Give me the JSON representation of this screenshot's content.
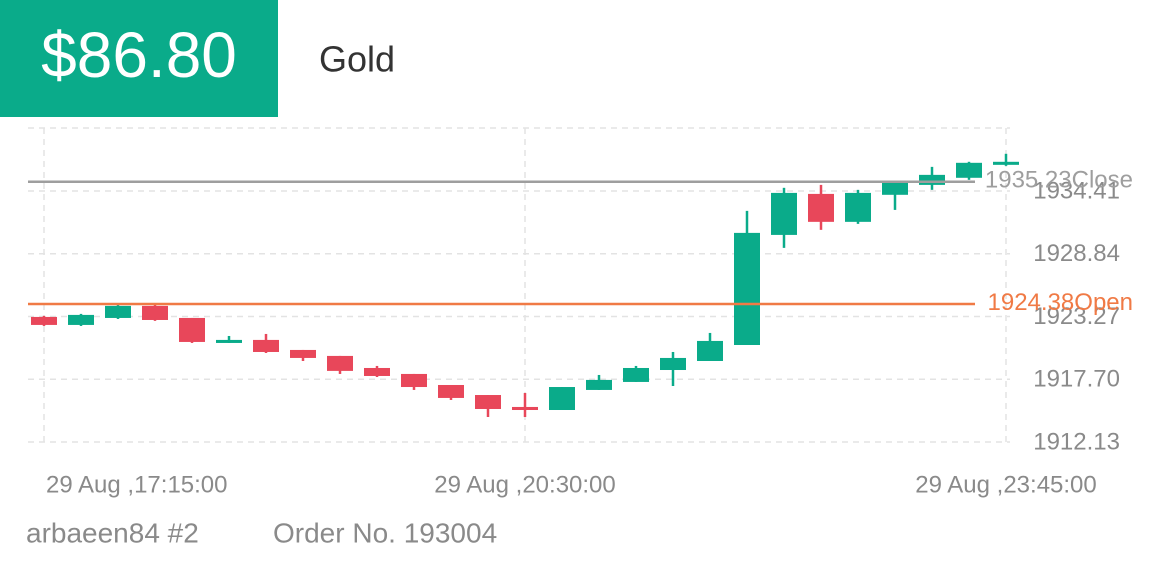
{
  "header": {
    "price": "$86.80",
    "title": "Gold"
  },
  "footer": {
    "user": "arbaeen84 #2",
    "order": "Order No. 193004"
  },
  "chart_data": {
    "type": "candlestick",
    "categories": [
      "29 Aug ,17:15:00",
      null,
      null,
      null,
      null,
      null,
      null,
      null,
      null,
      null,
      null,
      null,
      null,
      "29 Aug ,20:30:00",
      null,
      null,
      null,
      null,
      null,
      null,
      null,
      null,
      null,
      null,
      null,
      null,
      "29 Aug ,23:45:00"
    ],
    "open": [
      1923.23,
      1922.52,
      1923.14,
      1924.21,
      1923.14,
      1920.92,
      1921.19,
      1920.3,
      1919.77,
      1918.7,
      1918.17,
      1917.19,
      1916.3,
      1915.24,
      1914.97,
      1916.75,
      1917.46,
      1918.52,
      1919.32,
      1920.74,
      1930.51,
      1934.15,
      1931.67,
      1934.07,
      1934.95,
      1935.58,
      1936.73
    ],
    "high": [
      1923.32,
      1923.5,
      1924.3,
      1924.3,
      1923.14,
      1921.54,
      1921.72,
      1920.3,
      1919.77,
      1918.88,
      1918.17,
      1917.19,
      1916.3,
      1916.48,
      1917.01,
      1918.08,
      1918.88,
      1920.12,
      1921.81,
      1932.64,
      1934.69,
      1934.95,
      1934.51,
      1935.22,
      1936.55,
      1937.0,
      1937.71
    ],
    "low": [
      1922.43,
      1922.43,
      1923.05,
      1922.88,
      1920.92,
      1920.92,
      1920.03,
      1919.32,
      1918.17,
      1917.9,
      1916.75,
      1915.86,
      1914.35,
      1914.35,
      1914.97,
      1916.75,
      1917.46,
      1917.1,
      1919.32,
      1920.74,
      1929.36,
      1930.96,
      1931.49,
      1932.73,
      1934.51,
      1935.4,
      1936.64
    ],
    "close": [
      1922.52,
      1923.41,
      1924.21,
      1922.96,
      1921.01,
      1921.19,
      1920.12,
      1919.59,
      1918.44,
      1917.99,
      1917.01,
      1916.04,
      1915.06,
      1914.97,
      1917.01,
      1917.64,
      1918.7,
      1919.59,
      1921.1,
      1930.69,
      1934.24,
      1931.67,
      1934.24,
      1935.22,
      1935.84,
      1936.91,
      1937.0
    ],
    "up_color": "#0aab8a",
    "down_color": "#e8475a",
    "ylim": [
      1912.13,
      1940.0
    ],
    "yticks": [
      1912.13,
      {
        "value": 1917.7,
        "label": "1917.70"
      },
      1923.27,
      1928.84,
      1934.41
    ],
    "grid": true,
    "reference_lines": [
      {
        "name": "Close",
        "value": 1935.23,
        "color": "#9e9e9e"
      },
      {
        "name": "Open",
        "value": 1924.38,
        "color": "#f07a45"
      }
    ]
  }
}
